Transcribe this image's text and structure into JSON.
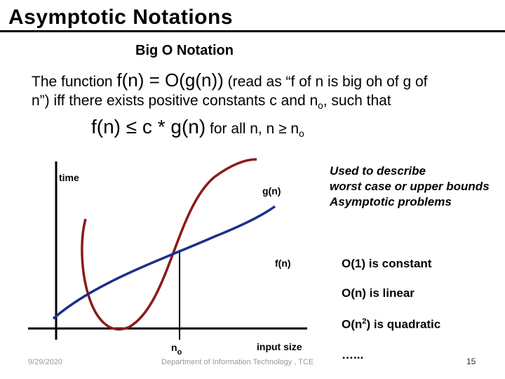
{
  "slide": {
    "title": "Asymptotic Notations",
    "subtitle": "Big O Notation",
    "line1": {
      "lead": "The function ",
      "fn": "f(n) = O(g(n))",
      "rest": " (read as “f of n is big oh of g of"
    },
    "line2": {
      "text": "n”) iff there exists positive constants c and n",
      "sub": "o",
      "tail": ", such that"
    },
    "line3": {
      "formula": "f(n) ≤ c * g(n)",
      "rest": " for all n, n ≥ n",
      "sub": "o"
    },
    "note": {
      "line1": "Used to describe",
      "line2": "worst case or upper bounds",
      "line3": "Asymptotic problems"
    },
    "complexities": {
      "o1": "O(1) is constant",
      "on": "O(n) is linear",
      "on2_prefix": "O(n",
      "on2_sup": "2",
      "on2_suffix": ") is quadratic",
      "ellipsis": "…..."
    },
    "graph": {
      "y_label": "time",
      "x_label": "input size",
      "g_label": "g(n)",
      "f_label": "f(n)",
      "n0_label": "n",
      "n0_sub": "o",
      "colors": {
        "g_curve": "#8b1a1a",
        "f_curve": "#1c2e8c",
        "axes": "#000000",
        "n0_line": "#000000"
      }
    },
    "footer": {
      "date": "9/29/2020",
      "department": "Department of Information Technology , TCE",
      "page": "15"
    }
  }
}
